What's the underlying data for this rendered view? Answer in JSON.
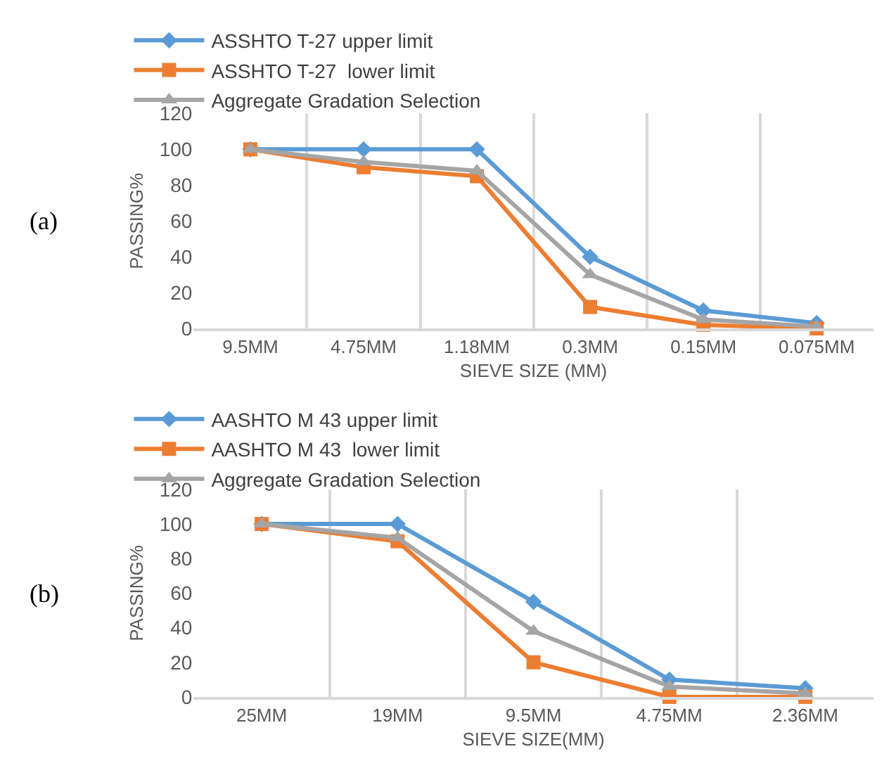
{
  "chart_data": [
    {
      "type": "line",
      "xlabel": "SIEVE SIZE (MM)",
      "ylabel": "PASSING%",
      "annotations": [
        "(a)"
      ],
      "categories": [
        "9.5MM",
        "4.75MM",
        "1.18MM",
        "0.3MM",
        "0.15MM",
        "0.075MM"
      ],
      "series": [
        {
          "name": "ASSHTO T-27 upper limit",
          "color": "#5b9bd5",
          "marker": "diamond",
          "values": [
            100,
            100,
            100,
            40,
            10,
            3
          ]
        },
        {
          "name": "ASSHTO T-27  lower limit",
          "color": "#ed7d31",
          "marker": "square",
          "values": [
            100,
            90,
            85,
            12,
            2,
            0
          ]
        },
        {
          "name": "Aggregate Gradation Selection",
          "color": "#a5a5a5",
          "marker": "triangle",
          "values": [
            100,
            93,
            88,
            30,
            5,
            1
          ]
        }
      ],
      "ylim": [
        0,
        120
      ],
      "yticks": [
        0,
        20,
        40,
        60,
        80,
        100,
        120
      ],
      "grid": "x",
      "legend": "top"
    },
    {
      "type": "line",
      "xlabel": "SIEVE SIZE(MM)",
      "ylabel": "PASSING%",
      "annotations": [
        "(b)"
      ],
      "categories": [
        "25MM",
        "19MM",
        "9.5MM",
        "4.75MM",
        "2.36MM"
      ],
      "series": [
        {
          "name": "AASHTO M 43 upper limit",
          "color": "#5b9bd5",
          "marker": "diamond",
          "values": [
            100,
            100,
            55,
            10,
            5
          ]
        },
        {
          "name": "AASHTO M 43  lower limit",
          "color": "#ed7d31",
          "marker": "square",
          "values": [
            100,
            90,
            20,
            0,
            0
          ]
        },
        {
          "name": "Aggregate Gradation Selection",
          "color": "#a5a5a5",
          "marker": "triangle",
          "values": [
            100,
            92,
            38,
            6,
            2
          ]
        }
      ],
      "ylim": [
        0,
        120
      ],
      "yticks": [
        0,
        20,
        40,
        60,
        80,
        100,
        120
      ],
      "grid": "x",
      "legend": "top"
    }
  ]
}
